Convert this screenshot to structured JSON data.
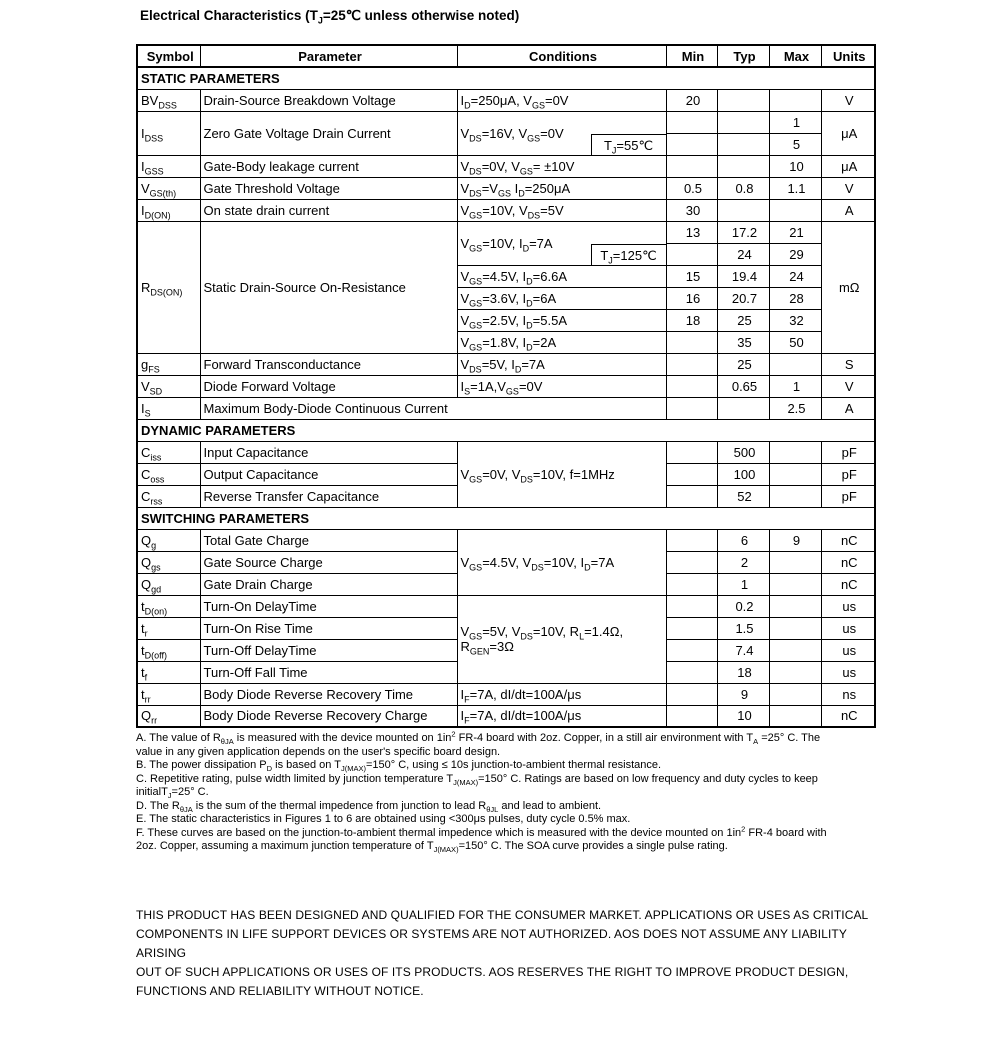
{
  "page": {
    "title": "Electrical Characteristics (T~J~=25℃ unless otherwise noted)"
  },
  "table": {
    "headers": [
      "Symbol",
      "Parameter",
      "Conditions",
      "Min",
      "Typ",
      "Max",
      "Units"
    ],
    "rows": [
      {
        "type": "section",
        "label": "STATIC PARAMETERS"
      },
      {
        "type": "data",
        "cells": [
          {
            "t": "BV~DSS~",
            "k": "sym"
          },
          {
            "t": "Drain-Source Breakdown Voltage",
            "k": "param"
          },
          {
            "t": "I~D~=250μA, V~GS~=0V",
            "k": "cond"
          },
          {
            "t": "20",
            "k": "val"
          },
          {
            "t": "",
            "k": "val"
          },
          {
            "t": "",
            "k": "val"
          },
          {
            "t": "V",
            "k": "unit"
          }
        ]
      },
      {
        "type": "data",
        "cells": [
          {
            "t": "I~DSS~",
            "k": "sym",
            "rs": 2
          },
          {
            "t": "Zero Gate Voltage Drain Current",
            "k": "param",
            "rs": 2
          },
          {
            "t": "V~DS~=16V, V~GS~=0V",
            "k": "cond",
            "rs": 2,
            "sub": "T~J~=55℃"
          },
          {
            "t": "",
            "k": "val"
          },
          {
            "t": "",
            "k": "val"
          },
          {
            "t": "1",
            "k": "val"
          },
          {
            "t": "μA",
            "k": "unit",
            "rs": 2
          }
        ]
      },
      {
        "type": "data",
        "cells": [
          {
            "t": "",
            "k": "val"
          },
          {
            "t": "",
            "k": "val"
          },
          {
            "t": "5",
            "k": "val"
          }
        ]
      },
      {
        "type": "data",
        "cells": [
          {
            "t": "I~GSS~",
            "k": "sym"
          },
          {
            "t": "Gate-Body leakage current",
            "k": "param"
          },
          {
            "t": "V~DS~=0V, V~GS~= ±10V",
            "k": "cond"
          },
          {
            "t": "",
            "k": "val"
          },
          {
            "t": "",
            "k": "val"
          },
          {
            "t": "10",
            "k": "val"
          },
          {
            "t": "μA",
            "k": "unit"
          }
        ]
      },
      {
        "type": "data",
        "cells": [
          {
            "t": "V~GS(th)~",
            "k": "sym"
          },
          {
            "t": "Gate Threshold Voltage",
            "k": "param"
          },
          {
            "t": "V~DS~=V~GS~ I~D~=250μA",
            "k": "cond"
          },
          {
            "t": "0.5",
            "k": "val"
          },
          {
            "t": "0.8",
            "k": "val"
          },
          {
            "t": "1.1",
            "k": "val"
          },
          {
            "t": "V",
            "k": "unit"
          }
        ]
      },
      {
        "type": "data",
        "cells": [
          {
            "t": "I~D(ON)~",
            "k": "sym"
          },
          {
            "t": "On state drain current",
            "k": "param"
          },
          {
            "t": "V~GS~=10V, V~DS~=5V",
            "k": "cond"
          },
          {
            "t": "30",
            "k": "val"
          },
          {
            "t": "",
            "k": "val"
          },
          {
            "t": "",
            "k": "val"
          },
          {
            "t": "A",
            "k": "unit"
          }
        ]
      },
      {
        "type": "data",
        "cells": [
          {
            "t": "R~DS(ON)~",
            "k": "sym",
            "rs": 6
          },
          {
            "t": "Static Drain-Source On-Resistance",
            "k": "param",
            "rs": 6
          },
          {
            "t": "V~GS~=10V, I~D~=7A",
            "k": "cond",
            "rs": 2,
            "sub": "T~J~=125℃"
          },
          {
            "t": "13",
            "k": "val"
          },
          {
            "t": "17.2",
            "k": "val"
          },
          {
            "t": "21",
            "k": "val"
          },
          {
            "t": "mΩ",
            "k": "unit",
            "rs": 6
          }
        ]
      },
      {
        "type": "data",
        "cells": [
          {
            "t": "",
            "k": "val"
          },
          {
            "t": "24",
            "k": "val"
          },
          {
            "t": "29",
            "k": "val"
          }
        ]
      },
      {
        "type": "data",
        "cells": [
          {
            "t": "V~GS~=4.5V, I~D~=6.6A",
            "k": "cond"
          },
          {
            "t": "15",
            "k": "val"
          },
          {
            "t": "19.4",
            "k": "val"
          },
          {
            "t": "24",
            "k": "val"
          }
        ]
      },
      {
        "type": "data",
        "cells": [
          {
            "t": "V~GS~=3.6V, I~D~=6A",
            "k": "cond"
          },
          {
            "t": "16",
            "k": "val"
          },
          {
            "t": "20.7",
            "k": "val"
          },
          {
            "t": "28",
            "k": "val"
          }
        ]
      },
      {
        "type": "data",
        "cells": [
          {
            "t": "V~GS~=2.5V, I~D~=5.5A",
            "k": "cond"
          },
          {
            "t": "18",
            "k": "val"
          },
          {
            "t": "25",
            "k": "val"
          },
          {
            "t": "32",
            "k": "val"
          }
        ]
      },
      {
        "type": "data",
        "cells": [
          {
            "t": "V~GS~=1.8V, I~D~=2A",
            "k": "cond"
          },
          {
            "t": "",
            "k": "val"
          },
          {
            "t": "35",
            "k": "val"
          },
          {
            "t": "50",
            "k": "val"
          }
        ]
      },
      {
        "type": "data",
        "cells": [
          {
            "t": "g~FS~",
            "k": "sym"
          },
          {
            "t": "Forward Transconductance",
            "k": "param"
          },
          {
            "t": "V~DS~=5V, I~D~=7A",
            "k": "cond"
          },
          {
            "t": "",
            "k": "val"
          },
          {
            "t": "25",
            "k": "val"
          },
          {
            "t": "",
            "k": "val"
          },
          {
            "t": "S",
            "k": "unit"
          }
        ]
      },
      {
        "type": "data",
        "cells": [
          {
            "t": "V~SD~",
            "k": "sym"
          },
          {
            "t": "Diode Forward Voltage",
            "k": "param"
          },
          {
            "t": "I~S~=1A,V~GS~=0V",
            "k": "cond"
          },
          {
            "t": "",
            "k": "val"
          },
          {
            "t": "0.65",
            "k": "val"
          },
          {
            "t": "1",
            "k": "val"
          },
          {
            "t": "V",
            "k": "unit"
          }
        ]
      },
      {
        "type": "data",
        "cells": [
          {
            "t": "I~S~",
            "k": "sym"
          },
          {
            "t": "Maximum Body-Diode Continuous Current",
            "k": "param",
            "cs": 2
          },
          {
            "t": "",
            "k": "val"
          },
          {
            "t": "",
            "k": "val"
          },
          {
            "t": "2.5",
            "k": "val"
          },
          {
            "t": "A",
            "k": "unit"
          }
        ]
      },
      {
        "type": "section",
        "label": "DYNAMIC PARAMETERS"
      },
      {
        "type": "data",
        "cells": [
          {
            "t": "C~iss~",
            "k": "sym"
          },
          {
            "t": "Input Capacitance",
            "k": "param"
          },
          {
            "t": "V~GS~=0V, V~DS~=10V, f=1MHz",
            "k": "cond",
            "rs": 3
          },
          {
            "t": "",
            "k": "val"
          },
          {
            "t": "500",
            "k": "val"
          },
          {
            "t": "",
            "k": "val"
          },
          {
            "t": "pF",
            "k": "unit"
          }
        ]
      },
      {
        "type": "data",
        "cells": [
          {
            "t": "C~oss~",
            "k": "sym"
          },
          {
            "t": "Output Capacitance",
            "k": "param"
          },
          {
            "t": "",
            "k": "val"
          },
          {
            "t": "100",
            "k": "val"
          },
          {
            "t": "",
            "k": "val"
          },
          {
            "t": "pF",
            "k": "unit"
          }
        ]
      },
      {
        "type": "data",
        "cells": [
          {
            "t": "C~rss~",
            "k": "sym"
          },
          {
            "t": "Reverse Transfer Capacitance",
            "k": "param"
          },
          {
            "t": "",
            "k": "val"
          },
          {
            "t": "52",
            "k": "val"
          },
          {
            "t": "",
            "k": "val"
          },
          {
            "t": "pF",
            "k": "unit"
          }
        ]
      },
      {
        "type": "section",
        "label": "SWITCHING PARAMETERS"
      },
      {
        "type": "data",
        "cells": [
          {
            "t": "Q~g~",
            "k": "sym"
          },
          {
            "t": "Total Gate Charge",
            "k": "param"
          },
          {
            "t": "V~GS~=4.5V, V~DS~=10V, I~D~=7A",
            "k": "cond",
            "rs": 3
          },
          {
            "t": "",
            "k": "val"
          },
          {
            "t": "6",
            "k": "val"
          },
          {
            "t": "9",
            "k": "val"
          },
          {
            "t": "nC",
            "k": "unit"
          }
        ]
      },
      {
        "type": "data",
        "cells": [
          {
            "t": "Q~gs~",
            "k": "sym"
          },
          {
            "t": "Gate Source Charge",
            "k": "param"
          },
          {
            "t": "",
            "k": "val"
          },
          {
            "t": "2",
            "k": "val"
          },
          {
            "t": "",
            "k": "val"
          },
          {
            "t": "nC",
            "k": "unit"
          }
        ]
      },
      {
        "type": "data",
        "cells": [
          {
            "t": "Q~gd~",
            "k": "sym"
          },
          {
            "t": "Gate Drain Charge",
            "k": "param"
          },
          {
            "t": "",
            "k": "val"
          },
          {
            "t": "1",
            "k": "val"
          },
          {
            "t": "",
            "k": "val"
          },
          {
            "t": "nC",
            "k": "unit"
          }
        ]
      },
      {
        "type": "data",
        "cells": [
          {
            "t": "t~D(on)~",
            "k": "sym"
          },
          {
            "t": "Turn-On DelayTime",
            "k": "param"
          },
          {
            "t": "V~GS~=5V, V~DS~=10V, R~L~=1.4Ω,\nR~GEN~=3Ω",
            "k": "cond",
            "rs": 4
          },
          {
            "t": "",
            "k": "val"
          },
          {
            "t": "0.2",
            "k": "val"
          },
          {
            "t": "",
            "k": "val"
          },
          {
            "t": "us",
            "k": "unit"
          }
        ]
      },
      {
        "type": "data",
        "cells": [
          {
            "t": "t~r~",
            "k": "sym"
          },
          {
            "t": "Turn-On Rise Time",
            "k": "param"
          },
          {
            "t": "",
            "k": "val"
          },
          {
            "t": "1.5",
            "k": "val"
          },
          {
            "t": "",
            "k": "val"
          },
          {
            "t": "us",
            "k": "unit"
          }
        ]
      },
      {
        "type": "data",
        "cells": [
          {
            "t": "t~D(off)~",
            "k": "sym"
          },
          {
            "t": "Turn-Off DelayTime",
            "k": "param"
          },
          {
            "t": "",
            "k": "val"
          },
          {
            "t": "7.4",
            "k": "val"
          },
          {
            "t": "",
            "k": "val"
          },
          {
            "t": "us",
            "k": "unit"
          }
        ]
      },
      {
        "type": "data",
        "cells": [
          {
            "t": "t~f~",
            "k": "sym"
          },
          {
            "t": "Turn-Off Fall Time",
            "k": "param"
          },
          {
            "t": "",
            "k": "val"
          },
          {
            "t": "18",
            "k": "val"
          },
          {
            "t": "",
            "k": "val"
          },
          {
            "t": "us",
            "k": "unit"
          }
        ]
      },
      {
        "type": "data",
        "cells": [
          {
            "t": "t~rr~",
            "k": "sym"
          },
          {
            "t": "Body Diode Reverse Recovery Time",
            "k": "param"
          },
          {
            "t": "I~F~=7A, dI/dt=100A/μs",
            "k": "cond"
          },
          {
            "t": "",
            "k": "val"
          },
          {
            "t": "9",
            "k": "val"
          },
          {
            "t": "",
            "k": "val"
          },
          {
            "t": "ns",
            "k": "unit"
          }
        ]
      },
      {
        "type": "data",
        "cells": [
          {
            "t": "Q~rr~",
            "k": "sym"
          },
          {
            "t": "Body Diode Reverse Recovery Charge",
            "k": "param"
          },
          {
            "t": "I~F~=7A, dI/dt=100A/μs",
            "k": "cond"
          },
          {
            "t": "",
            "k": "val"
          },
          {
            "t": "10",
            "k": "val"
          },
          {
            "t": "",
            "k": "val"
          },
          {
            "t": "nC",
            "k": "unit"
          }
        ]
      }
    ]
  },
  "notes": [
    "A. The value of R~θJA~ is measured with the device mounted on 1in^2^ FR-4 board with 2oz. Copper, in a still air environment with T~A~ =25° C. The\nvalue in any given application depends on the user's specific board design.",
    "B. The power dissipation P~D~ is based on T~J(MAX)~=150° C, using ≤ 10s junction-to-ambient thermal resistance.",
    "C.  Repetitive rating, pulse width limited by junction temperature T~J(MAX)~=150° C. Ratings are based on low frequency and duty cycles to keep\ninitialT~J~=25° C.",
    "D. The R~θJA~ is the sum of the thermal impedence from junction to lead R~θJL~ and lead to ambient.",
    "E. The static characteristics in Figures 1 to 6 are obtained using <300μs pulses, duty cycle 0.5% max.",
    "F. These curves are based on the junction-to-ambient thermal impedence which is measured with the device mounted on 1in^2^  FR-4 board with\n2oz. Copper, assuming a maximum junction temperature of T~J(MAX)~=150° C. The SOA curve provides a single pulse rating."
  ],
  "disclaimer": [
    "THIS PRODUCT HAS BEEN DESIGNED AND QUALIFIED FOR THE CONSUMER MARKET. APPLICATIONS OR USES AS CRITICAL",
    "COMPONENTS IN LIFE SUPPORT DEVICES OR SYSTEMS ARE NOT AUTHORIZED. AOS DOES NOT ASSUME ANY LIABILITY ARISING",
    "OUT OF SUCH APPLICATIONS OR USES OF ITS PRODUCTS.  AOS RESERVES THE RIGHT TO IMPROVE PRODUCT DESIGN,",
    "FUNCTIONS AND RELIABILITY WITHOUT NOTICE."
  ]
}
